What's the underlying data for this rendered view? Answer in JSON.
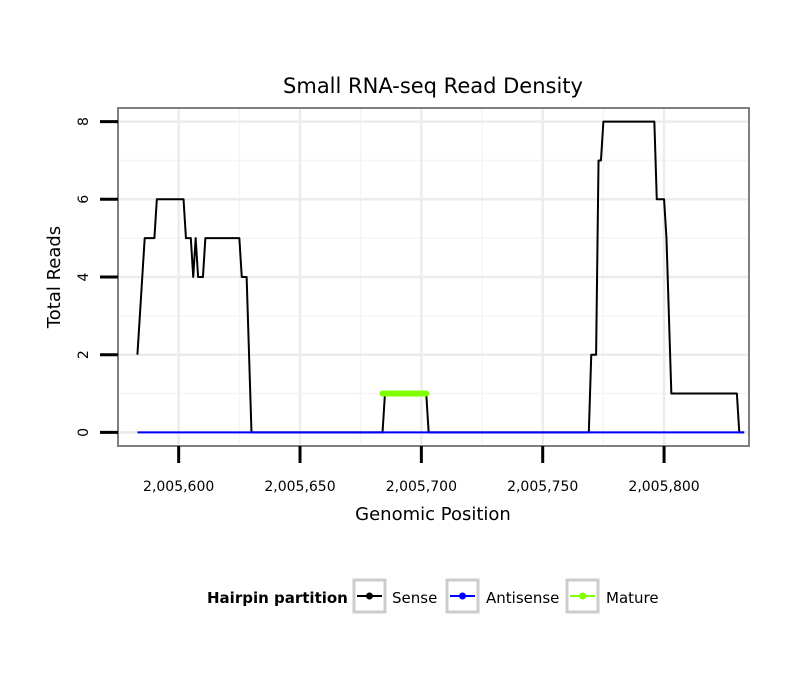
{
  "chart_data": {
    "type": "line",
    "title": "Small RNA-seq Read Density",
    "xlabel": "Genomic Position",
    "ylabel": "Total Reads",
    "xlim": [
      2005575,
      2005835
    ],
    "ylim": [
      -0.35,
      8.35
    ],
    "x_ticks": [
      2005600,
      2005650,
      2005700,
      2005750,
      2005800
    ],
    "x_tick_labels": [
      "2,005,600",
      "2,005,650",
      "2,005,700",
      "2,005,750",
      "2,005,800"
    ],
    "y_ticks": [
      0,
      2,
      4,
      6,
      8
    ],
    "y_tick_labels": [
      "0",
      "2",
      "4",
      "6",
      "8"
    ],
    "grid": true,
    "legend": {
      "title": "Hairpin partition",
      "position": "bottom",
      "entries": [
        "Sense",
        "Antisense",
        "Mature"
      ]
    },
    "series": [
      {
        "name": "Sense",
        "color": "#000000",
        "x": [
          2005583,
          2005586,
          2005587,
          2005590,
          2005591,
          2005602,
          2005603,
          2005605,
          2005606,
          2005607,
          2005608,
          2005610,
          2005611,
          2005625,
          2005626,
          2005628,
          2005630,
          2005684,
          2005685,
          2005702,
          2005703,
          2005769,
          2005770,
          2005772,
          2005773,
          2005774,
          2005775,
          2005777,
          2005778,
          2005796,
          2005797,
          2005800,
          2005801,
          2005803,
          2005830,
          2005831,
          2005833
        ],
        "values": [
          2,
          5,
          5,
          5,
          6,
          6,
          5,
          5,
          4,
          5,
          4,
          4,
          5,
          5,
          4,
          4,
          0,
          0,
          1,
          1,
          0,
          0,
          2,
          2,
          7,
          7,
          8,
          8,
          8,
          8,
          6,
          6,
          5,
          1,
          1,
          0,
          0
        ]
      },
      {
        "name": "Antisense",
        "color": "#0000ff",
        "x": [
          2005583,
          2005833
        ],
        "values": [
          0,
          0
        ]
      },
      {
        "name": "Mature",
        "color": "#7fff00",
        "x": [
          2005684,
          2005702
        ],
        "values": [
          1,
          1
        ]
      }
    ]
  }
}
